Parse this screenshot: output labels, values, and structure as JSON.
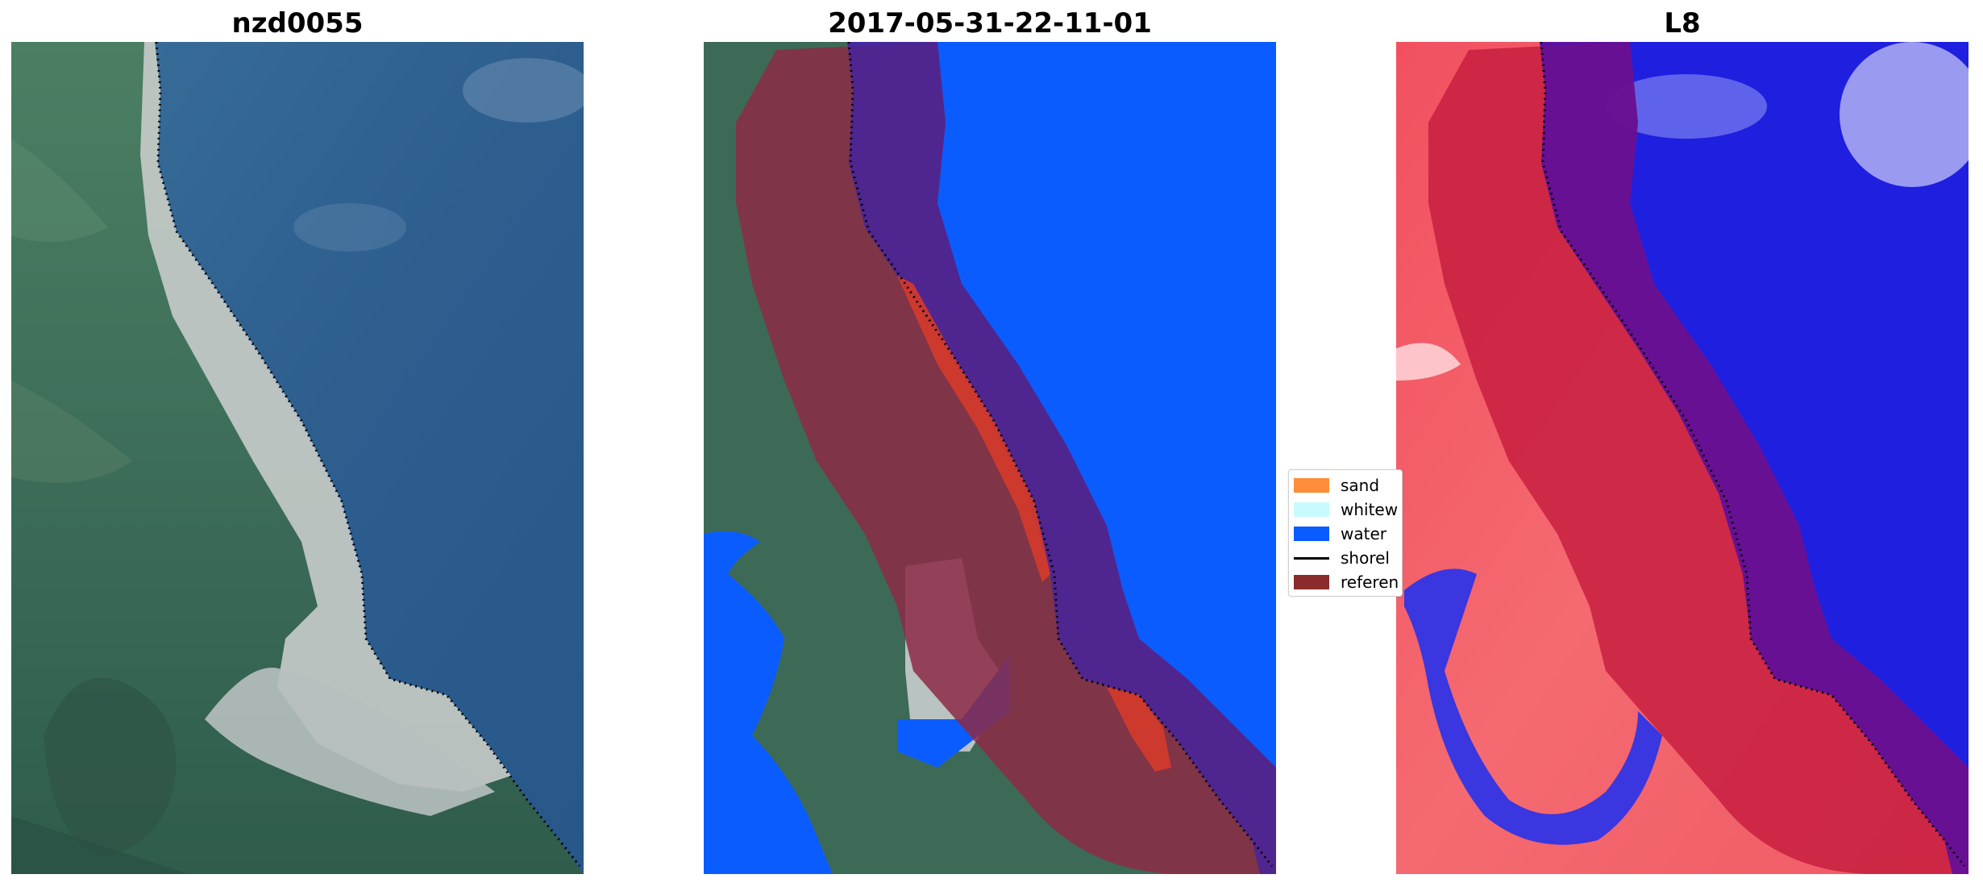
{
  "panels": [
    {
      "title": "nzd0055"
    },
    {
      "title": "2017-05-31-22-11-01"
    },
    {
      "title": "L8"
    }
  ],
  "legend": {
    "items": [
      {
        "label": "sand",
        "color": "#ff8c3a",
        "kind": "patch"
      },
      {
        "label": "whitew",
        "color": "#c8fbfb",
        "kind": "patch"
      },
      {
        "label": "water",
        "color": "#0b5cff",
        "kind": "patch"
      },
      {
        "label": "shorel",
        "color": "#000000",
        "kind": "line"
      },
      {
        "label": "referen",
        "color": "#8c2b2b",
        "kind": "patch"
      }
    ]
  },
  "colors": {
    "sea_rgb": "#2f5f8f",
    "land_rgb": "#3e6b55",
    "beach_rgb": "#c9cdc9",
    "water_class": "#0b5cff",
    "reference_buffer": "#8c2a45",
    "index_positive": "#e8283a",
    "index_negative": "#1f1fe0"
  }
}
